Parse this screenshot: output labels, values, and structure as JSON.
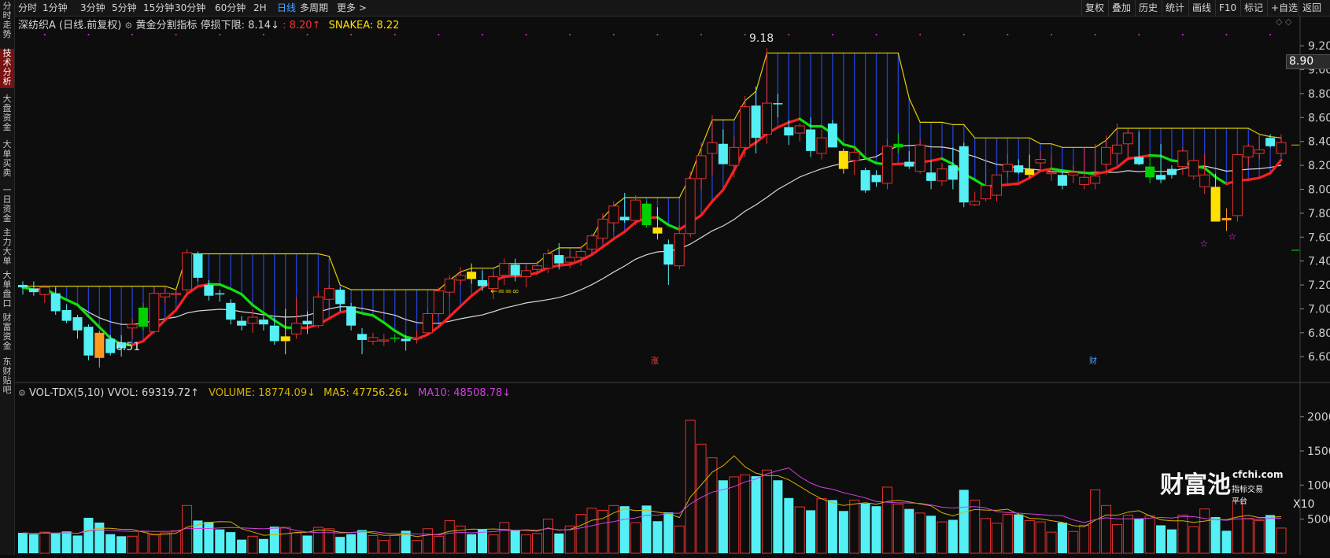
{
  "side_tabs": [
    {
      "label": "分时走势",
      "active": false
    },
    {
      "label": "技术分析",
      "active": true
    },
    {
      "label": "大盘资金",
      "active": false
    },
    {
      "label": "大单买卖",
      "active": false
    },
    {
      "label": "一日资金",
      "active": false
    },
    {
      "label": "主力大单",
      "active": false
    },
    {
      "label": "大单盘口",
      "active": false
    },
    {
      "label": "财富资金",
      "active": false
    },
    {
      "label": "东财贴吧",
      "active": false
    }
  ],
  "periods": [
    "分时",
    "1分钟",
    "3分钟",
    "5分钟",
    "15分钟",
    "30分钟",
    "60分钟",
    "2H",
    "日线",
    "多周期",
    "更多 >"
  ],
  "selected_period": "日线",
  "toolbar_right": [
    "复权",
    "叠加",
    "历史",
    "统计",
    "画线",
    "F10",
    "标记",
    "+自选",
    "返回"
  ],
  "legend": {
    "stock": "深纺织A (日线.前复权)",
    "indicator": "黄金分割指标",
    "stop_label": "停损下限: 8.14↓",
    "red_value": ": 8.20↑",
    "snakea": "SNAKEA: 8.22"
  },
  "vol_legend": {
    "name": "VOL-TDX(5,10)",
    "vvol": "VVOL: 69319.72↑",
    "volume": "VOLUME: 18774.09↓",
    "ma5": "MA5: 47756.26↓",
    "ma10": "MA10: 48508.78↓"
  },
  "current_price": "8.90",
  "annotations": {
    "high": "9.18",
    "low": "6.51",
    "zhang": "涨",
    "cai": "财",
    "multiplier": "X10"
  },
  "watermark": {
    "main": "财富池",
    "url": "cfchi.com",
    "tagline": "指标交易平台"
  },
  "colors": {
    "up": "#e83030",
    "down": "#54f0f5",
    "yellow": "#ffe000",
    "orange": "#ff9a1f",
    "green": "#00d000",
    "ma_red": "#ff2020",
    "ma_green": "#10e010",
    "white_line": "#d8d8d8",
    "ma5_line": "#d4b000",
    "ma10_line": "#d040e0"
  },
  "chart_data": {
    "type": "candlestick",
    "price_ylim": [
      6.45,
      9.28
    ],
    "price_ticks": [
      9.2,
      9.0,
      8.8,
      8.6,
      8.4,
      8.2,
      8.0,
      7.8,
      7.6,
      7.4,
      7.2,
      7.0,
      6.8,
      6.6
    ],
    "volume_ylim": [
      0,
      21000
    ],
    "volume_ticks": [
      20000,
      15000,
      10000,
      5000
    ],
    "candles": [
      [
        7.2,
        7.23,
        7.12,
        7.18,
        3000
      ],
      [
        7.17,
        7.23,
        7.11,
        7.14,
        2800
      ],
      [
        7.12,
        7.2,
        7.05,
        7.18,
        3100
      ],
      [
        7.13,
        7.18,
        6.95,
        6.98,
        2900
      ],
      [
        6.99,
        7.04,
        6.88,
        6.9,
        3200
      ],
      [
        6.93,
        6.95,
        6.75,
        6.82,
        2600
      ],
      [
        6.85,
        6.87,
        6.57,
        6.61,
        5200
      ],
      [
        6.8,
        6.82,
        6.51,
        6.59,
        4500
      ],
      [
        6.75,
        6.78,
        6.61,
        6.63,
        2800
      ],
      [
        6.72,
        6.78,
        6.6,
        6.67,
        2500
      ],
      [
        6.84,
        6.92,
        6.75,
        6.87,
        2500
      ],
      [
        6.85,
        7.05,
        6.82,
        7.01,
        3200
      ],
      [
        6.81,
        7.18,
        6.79,
        7.13,
        2700
      ],
      [
        7.1,
        7.19,
        7.05,
        7.13,
        3000
      ],
      [
        7.12,
        7.18,
        7.08,
        7.13,
        3300
      ],
      [
        7.16,
        7.5,
        7.12,
        7.47,
        7000
      ],
      [
        7.46,
        7.48,
        7.23,
        7.26,
        4800
      ],
      [
        7.2,
        7.24,
        7.07,
        7.11,
        4600
      ],
      [
        7.13,
        7.16,
        7.06,
        7.12,
        3500
      ],
      [
        7.05,
        7.08,
        6.87,
        6.91,
        3100
      ],
      [
        6.9,
        6.94,
        6.82,
        6.86,
        2000
      ],
      [
        6.88,
        7.0,
        6.8,
        6.93,
        2500
      ],
      [
        6.91,
        6.94,
        6.82,
        6.87,
        2100
      ],
      [
        6.86,
        6.93,
        6.7,
        6.73,
        3900
      ],
      [
        6.73,
        7.0,
        6.62,
        6.77,
        3800
      ],
      [
        6.79,
        7.1,
        6.75,
        6.88,
        3000
      ],
      [
        6.9,
        6.98,
        6.79,
        6.87,
        2600
      ],
      [
        6.86,
        7.14,
        6.84,
        7.1,
        3800
      ],
      [
        7.08,
        7.2,
        7.0,
        7.17,
        3600
      ],
      [
        7.16,
        7.18,
        6.98,
        7.04,
        2400
      ],
      [
        7.02,
        7.05,
        6.82,
        6.86,
        2800
      ],
      [
        6.79,
        6.84,
        6.62,
        6.74,
        3400
      ],
      [
        6.73,
        6.8,
        6.7,
        6.76,
        2600
      ],
      [
        6.74,
        6.79,
        6.69,
        6.74,
        1900
      ],
      [
        6.75,
        6.79,
        6.72,
        6.76,
        2600
      ],
      [
        6.75,
        6.78,
        6.65,
        6.73,
        3300
      ],
      [
        6.76,
        6.82,
        6.71,
        6.76,
        1900
      ],
      [
        6.8,
        7.0,
        6.8,
        6.96,
        3600
      ],
      [
        6.96,
        7.18,
        6.94,
        7.15,
        2500
      ],
      [
        7.14,
        7.28,
        7.1,
        7.25,
        4800
      ],
      [
        7.24,
        7.35,
        7.2,
        7.28,
        4000
      ],
      [
        7.31,
        7.38,
        7.21,
        7.25,
        2800
      ],
      [
        7.24,
        7.32,
        7.15,
        7.19,
        3500
      ],
      [
        7.17,
        7.3,
        7.08,
        7.27,
        2700
      ],
      [
        7.28,
        7.42,
        7.2,
        7.38,
        4500
      ],
      [
        7.37,
        7.42,
        7.23,
        7.28,
        3400
      ],
      [
        7.27,
        7.36,
        7.18,
        7.32,
        2700
      ],
      [
        7.33,
        7.4,
        7.28,
        7.36,
        2900
      ],
      [
        7.34,
        7.5,
        7.3,
        7.46,
        5000
      ],
      [
        7.45,
        7.55,
        7.33,
        7.38,
        2900
      ],
      [
        7.39,
        7.48,
        7.34,
        7.43,
        4000
      ],
      [
        7.43,
        7.52,
        7.36,
        7.48,
        5700
      ],
      [
        7.5,
        7.63,
        7.45,
        7.61,
        6600
      ],
      [
        7.59,
        7.8,
        7.55,
        7.75,
        6300
      ],
      [
        7.72,
        7.9,
        7.65,
        7.86,
        7000
      ],
      [
        7.77,
        7.97,
        7.72,
        7.74,
        6900
      ],
      [
        7.74,
        7.95,
        7.7,
        7.91,
        4500
      ],
      [
        7.88,
        7.9,
        7.68,
        7.7,
        7000
      ],
      [
        7.68,
        7.85,
        7.58,
        7.63,
        4700
      ],
      [
        7.54,
        7.58,
        7.2,
        7.37,
        6000
      ],
      [
        7.36,
        7.7,
        7.33,
        7.63,
        4000
      ],
      [
        7.63,
        8.15,
        7.6,
        8.09,
        19500
      ],
      [
        8.09,
        8.39,
        8.0,
        8.28,
        16000
      ],
      [
        8.3,
        8.62,
        8.12,
        8.39,
        14000
      ],
      [
        8.38,
        8.5,
        8.22,
        8.21,
        10700
      ],
      [
        8.2,
        8.44,
        8.1,
        8.35,
        11200
      ],
      [
        8.35,
        8.78,
        8.27,
        8.69,
        11500
      ],
      [
        8.7,
        8.86,
        8.3,
        8.43,
        11300
      ],
      [
        8.46,
        9.18,
        8.38,
        8.72,
        12200
      ],
      [
        8.72,
        8.8,
        8.6,
        8.71,
        10700
      ],
      [
        8.52,
        8.58,
        8.37,
        8.45,
        8100
      ],
      [
        8.47,
        8.55,
        8.4,
        8.53,
        6800
      ],
      [
        8.5,
        8.6,
        8.27,
        8.32,
        6300
      ],
      [
        8.3,
        8.5,
        8.25,
        8.43,
        8000
      ],
      [
        8.55,
        8.58,
        8.37,
        8.35,
        7800
      ],
      [
        8.32,
        8.34,
        8.13,
        8.17,
        6200
      ],
      [
        8.24,
        8.35,
        8.12,
        8.31,
        7800
      ],
      [
        8.16,
        8.18,
        7.97,
        7.99,
        7300
      ],
      [
        8.12,
        8.16,
        8.02,
        8.06,
        6900
      ],
      [
        8.05,
        8.42,
        8.0,
        8.36,
        9700
      ],
      [
        8.35,
        8.47,
        8.3,
        8.38,
        7200
      ],
      [
        8.23,
        8.32,
        8.17,
        8.19,
        6500
      ],
      [
        8.15,
        8.42,
        8.13,
        8.37,
        5900
      ],
      [
        8.14,
        8.24,
        8.0,
        8.07,
        5500
      ],
      [
        8.07,
        8.22,
        8.03,
        8.17,
        4600
      ],
      [
        8.2,
        8.35,
        8.0,
        8.08,
        4900
      ],
      [
        8.36,
        8.39,
        7.85,
        7.89,
        9300
      ],
      [
        7.87,
        7.98,
        7.86,
        7.9,
        7800
      ],
      [
        7.92,
        8.25,
        7.9,
        8.03,
        5100
      ],
      [
        7.95,
        8.1,
        7.9,
        8.12,
        4400
      ],
      [
        8.15,
        8.3,
        8.1,
        8.21,
        5700
      ],
      [
        8.2,
        8.25,
        8.13,
        8.14,
        5700
      ],
      [
        8.12,
        8.29,
        8.1,
        8.17,
        4800
      ],
      [
        8.22,
        8.32,
        8.15,
        8.25,
        4600
      ],
      [
        8.13,
        8.28,
        8.07,
        8.14,
        3100
      ],
      [
        8.12,
        8.15,
        8.0,
        8.03,
        4500
      ],
      [
        8.12,
        8.2,
        8.05,
        8.14,
        3200
      ],
      [
        8.04,
        8.35,
        8.0,
        8.1,
        4100
      ],
      [
        8.05,
        8.38,
        8.0,
        8.11,
        9300
      ],
      [
        8.21,
        8.45,
        8.12,
        8.35,
        7000
      ],
      [
        8.3,
        8.55,
        8.21,
        8.37,
        4200
      ],
      [
        8.38,
        8.5,
        8.25,
        8.47,
        5600
      ],
      [
        8.27,
        8.48,
        8.2,
        8.21,
        5100
      ],
      [
        8.1,
        8.3,
        8.05,
        8.19,
        5500
      ],
      [
        8.12,
        8.38,
        8.05,
        8.08,
        4100
      ],
      [
        8.17,
        8.2,
        8.09,
        8.12,
        3500
      ],
      [
        8.19,
        8.35,
        8.12,
        8.32,
        5600
      ],
      [
        8.11,
        8.25,
        8.08,
        8.24,
        3900
      ],
      [
        8.02,
        8.3,
        7.96,
        8.12,
        6500
      ],
      [
        8.02,
        8.13,
        7.73,
        7.73,
        5300
      ],
      [
        7.76,
        7.84,
        7.65,
        7.74,
        3300
      ],
      [
        7.78,
        8.29,
        7.73,
        8.29,
        7600
      ],
      [
        8.27,
        8.38,
        8.19,
        8.36,
        5100
      ],
      [
        8.3,
        8.47,
        8.25,
        8.33,
        4800
      ],
      [
        8.43,
        8.46,
        8.35,
        8.36,
        5600
      ],
      [
        8.3,
        8.46,
        8.27,
        8.39,
        3700
      ]
    ]
  }
}
